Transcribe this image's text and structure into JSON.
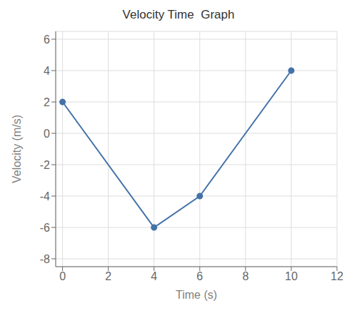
{
  "chart_data": {
    "type": "line",
    "title": "Velocity Time  Graph",
    "xlabel": "Time (s)",
    "ylabel": "Velocity (m/s)",
    "x": [
      0,
      4,
      6,
      10
    ],
    "values": [
      2,
      -6,
      -4,
      4
    ],
    "color": "#4472a8",
    "marker": "circle",
    "xlim": [
      -0.3,
      12
    ],
    "ylim": [
      -8.5,
      6.5
    ],
    "xticks": [
      0,
      2,
      4,
      6,
      8,
      10,
      12
    ],
    "yticks": [
      -8,
      -6,
      -4,
      -2,
      0,
      2,
      4,
      6
    ],
    "grid": true
  }
}
